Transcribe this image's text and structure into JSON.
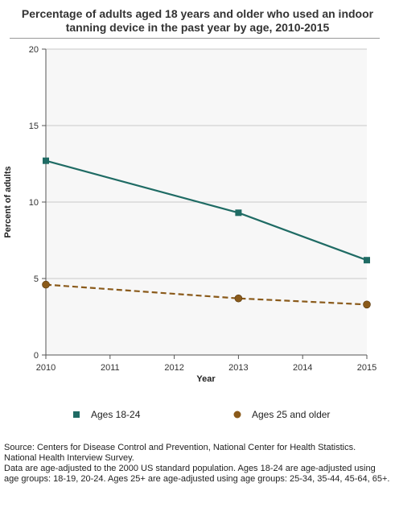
{
  "title": "Percentage of adults aged 18 years and older who used an indoor tanning device in the past year by age, 2010-2015",
  "legend": {
    "item1": "Ages 18-24",
    "item2": "Ages 25 and older"
  },
  "source": {
    "line1": "Source: Centers for Disease Control and Prevention, National Center for Health Statistics. National Health Interview Survey.",
    "line2": "Data are age-adjusted to the 2000 US standard population. Ages 18-24 are age-adjusted using age groups: 18-19, 20-24. Ages 25+ are age-adjusted using age groups: 25-34, 35-44, 45-64, 65+."
  },
  "chart_data": {
    "type": "line",
    "title": "Percentage of adults aged 18 years and older who used an indoor tanning device in the past year by age, 2010-2015",
    "xlabel": "Year",
    "ylabel": "Percent of adults",
    "x_ticks": [
      "2010",
      "2011",
      "2012",
      "2013",
      "2014",
      "2015"
    ],
    "y_ticks": [
      "0",
      "5",
      "10",
      "15",
      "20"
    ],
    "xlim": [
      2010,
      2015
    ],
    "ylim": [
      0,
      20
    ],
    "grid": true,
    "legend_position": "bottom",
    "series": [
      {
        "name": "Ages 18-24",
        "color": "#1f6b64",
        "marker": "square",
        "dash": false,
        "x": [
          2010,
          2013,
          2015
        ],
        "y": [
          12.7,
          9.3,
          6.2
        ]
      },
      {
        "name": "Ages 25 and older",
        "color": "#8a5a1a",
        "marker": "circle",
        "dash": true,
        "x": [
          2010,
          2013,
          2015
        ],
        "y": [
          4.6,
          3.7,
          3.3
        ]
      }
    ]
  }
}
